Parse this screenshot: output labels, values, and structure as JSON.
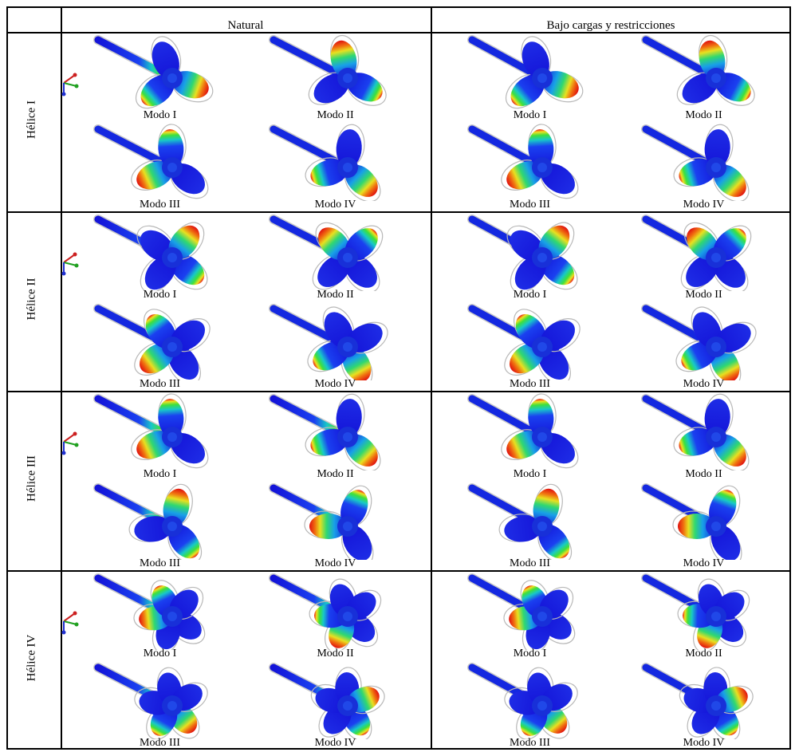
{
  "columns": {
    "natural": "Natural",
    "loaded": "Bajo cargas y restricciones"
  },
  "rows": [
    {
      "label": "Hélice I",
      "blades": 3
    },
    {
      "label": "Hélice II",
      "blades": 4
    },
    {
      "label": "Hélice III",
      "blades": 3
    },
    {
      "label": "Hélice IV",
      "blades": 5
    }
  ],
  "modes": [
    "Modo I",
    "Modo II",
    "Modo III",
    "Modo IV"
  ]
}
